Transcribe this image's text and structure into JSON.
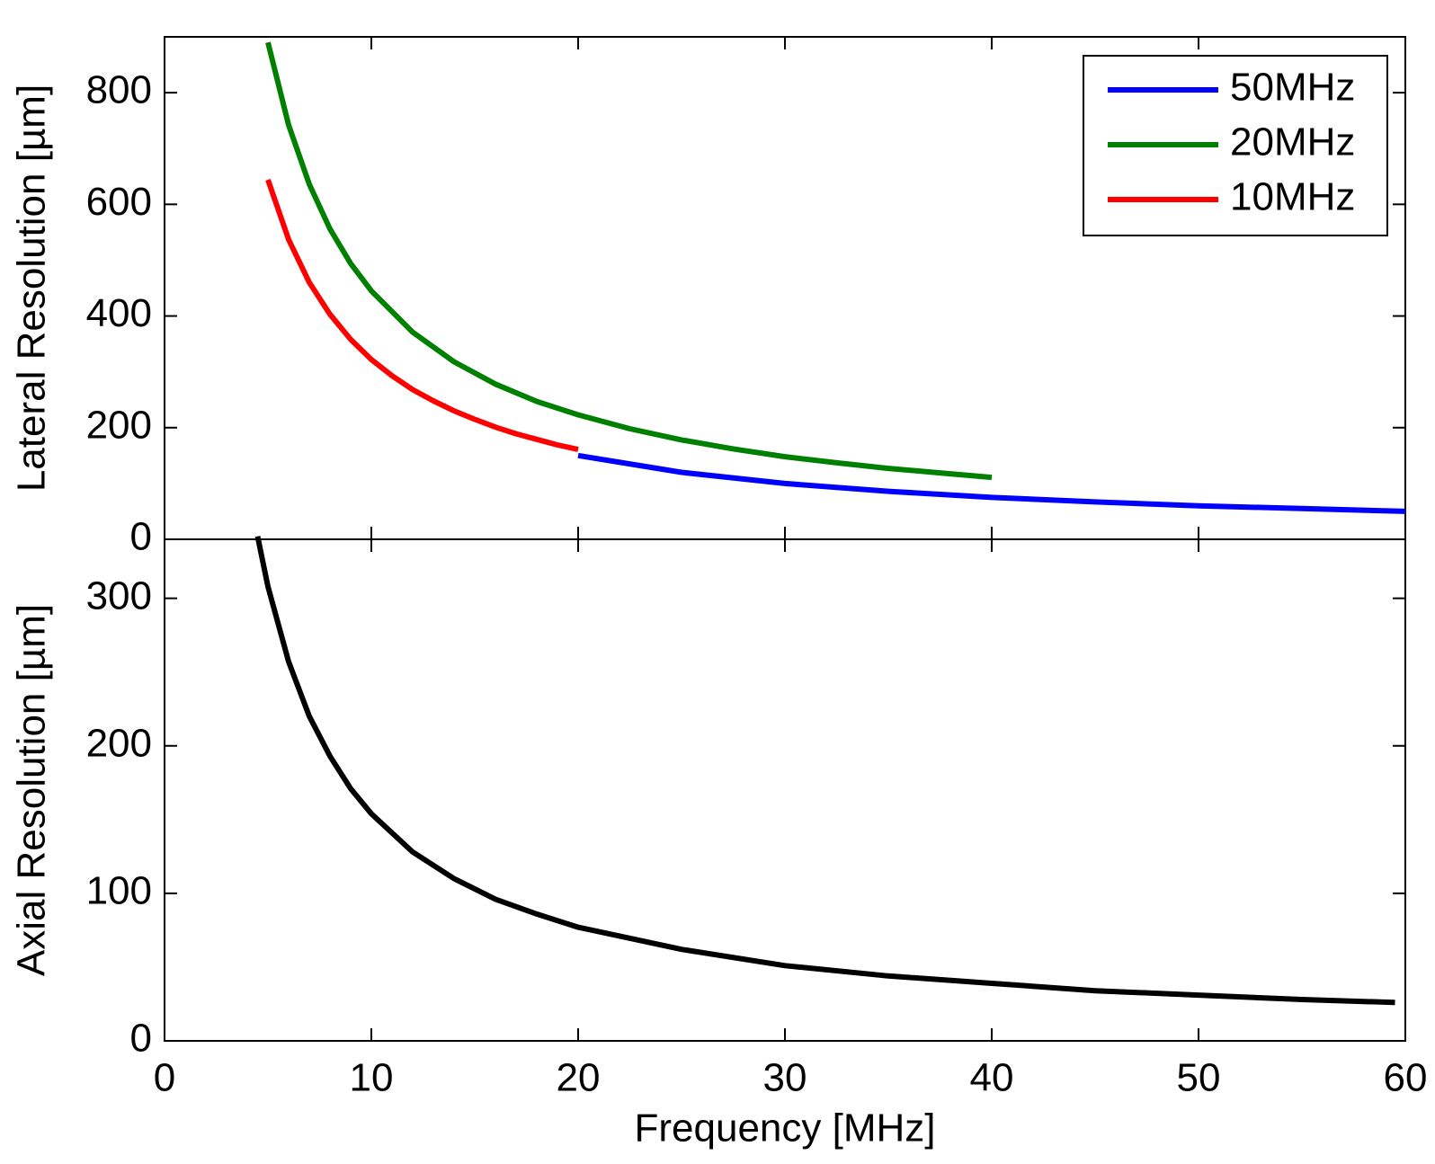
{
  "chart_data": [
    {
      "type": "line",
      "ylabel": "Lateral Resolution [µm]",
      "xlim": [
        0,
        60
      ],
      "ylim": [
        0,
        900
      ],
      "yticks": [
        0,
        200,
        400,
        600,
        800
      ],
      "legend": "upper right",
      "series": [
        {
          "name": "50MHz",
          "color": "#0000ff",
          "x": [
            20,
            25,
            30,
            35,
            40,
            45,
            50,
            55,
            60
          ],
          "values": [
            150,
            120,
            100,
            86,
            75,
            67,
            60,
            55,
            50
          ]
        },
        {
          "name": "20MHz",
          "color": "#008000",
          "x": [
            5,
            6,
            7,
            8,
            9,
            10,
            12,
            14,
            16,
            18,
            20,
            22.5,
            25,
            27.5,
            30,
            32.5,
            35,
            37.5,
            40
          ],
          "values": [
            890,
            742,
            636,
            556,
            494,
            445,
            371,
            318,
            278,
            247,
            223,
            198,
            178,
            162,
            148,
            137,
            127,
            119,
            111
          ]
        },
        {
          "name": "10MHz",
          "color": "#ff0000",
          "x": [
            5,
            6,
            7,
            8,
            9,
            10,
            11,
            12,
            13,
            14,
            15,
            16,
            17,
            18,
            19,
            20
          ],
          "values": [
            644,
            537,
            460,
            403,
            358,
            322,
            293,
            268,
            248,
            230,
            215,
            201,
            189,
            179,
            169,
            161
          ]
        }
      ]
    },
    {
      "type": "line",
      "ylabel": "Axial Resolution [µm]",
      "xlabel": "Frequency [MHz]",
      "xlim": [
        0,
        60
      ],
      "xticks": [
        0,
        10,
        20,
        30,
        40,
        50,
        60
      ],
      "ylim": [
        0,
        340
      ],
      "yticks": [
        0,
        100,
        200,
        300
      ],
      "series": [
        {
          "color": "#000000",
          "x": [
            4.5,
            5,
            6,
            7,
            8,
            9,
            10,
            12,
            14,
            16,
            18,
            20,
            25,
            30,
            35,
            40,
            45,
            50,
            55,
            59.5
          ],
          "values": [
            342,
            308,
            257,
            220,
            193,
            171,
            154,
            128,
            110,
            96,
            86,
            77,
            62,
            51,
            44,
            39,
            34,
            31,
            28,
            26
          ]
        }
      ]
    }
  ]
}
